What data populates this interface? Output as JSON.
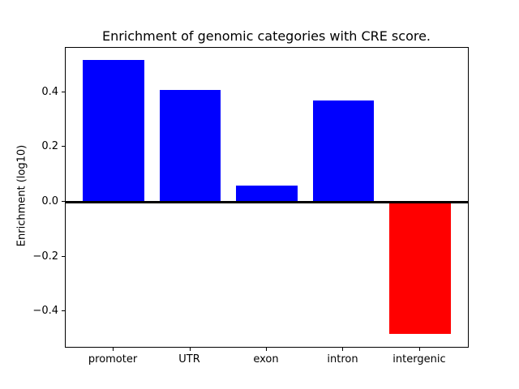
{
  "figure": {
    "title": "Enrichment of genomic categories with CRE score."
  },
  "chart_data": {
    "type": "bar",
    "title": "Enrichment of genomic categories with CRE score.",
    "categories": [
      "promoter",
      "UTR",
      "exon",
      "intron",
      "intergenic"
    ],
    "values": [
      0.52,
      0.41,
      0.06,
      0.37,
      -0.48
    ],
    "xlabel": "",
    "ylabel": "Enrichment (log10)",
    "positive_color": "#0000ff",
    "negative_color": "#ff0000",
    "bar_colors": [
      "#0000ff",
      "#0000ff",
      "#0000ff",
      "#0000ff",
      "#ff0000"
    ],
    "ylim": [
      -0.529,
      0.565
    ],
    "xlim": [
      -0.625,
      4.625
    ],
    "bar_width": 0.8,
    "yticks": [
      0.4,
      0.2,
      0.0,
      -0.2,
      -0.4
    ],
    "ytick_labels": [
      "0.4",
      "0.2",
      "0.0",
      "−0.2",
      "−0.4"
    ],
    "zero_line": true,
    "grid": false,
    "legend_position": "none",
    "spine_color": "#000000",
    "background_color": "#ffffff"
  }
}
